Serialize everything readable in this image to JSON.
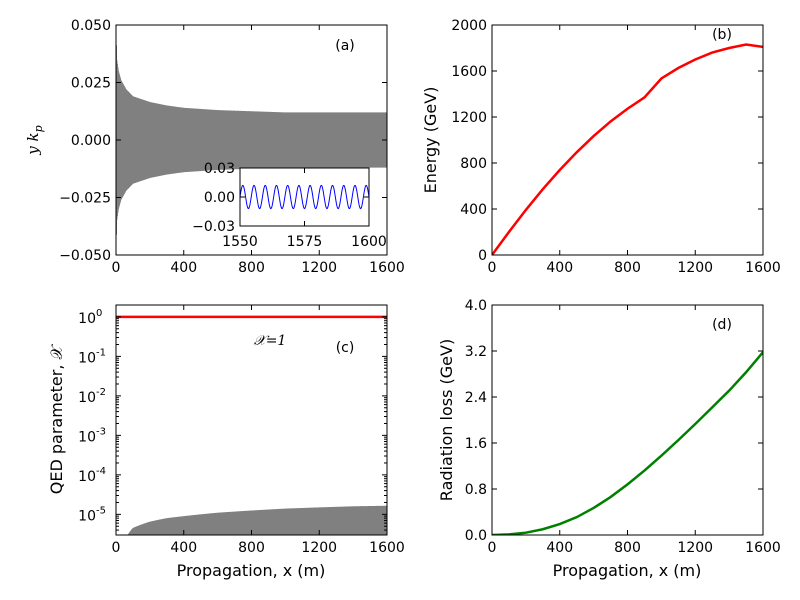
{
  "chart_data": [
    {
      "panel": "a",
      "type": "line",
      "label": "(a)",
      "ylabel": "y k_p",
      "xlim": [
        0,
        1600
      ],
      "ylim": [
        -0.05,
        0.05
      ],
      "xticks": [
        "0",
        "400",
        "800",
        "1200",
        "1600"
      ],
      "yticks": [
        "0.050",
        "0.025",
        "0.000",
        "−0.025",
        "−0.050"
      ],
      "series": [
        {
          "color": "#808080",
          "style": "filled oscillation envelope",
          "envelope_x": [
            0,
            5,
            15,
            30,
            60,
            100,
            200,
            300,
            400,
            600,
            800,
            1000,
            1200,
            1400,
            1600
          ],
          "envelope_y": [
            0.05,
            0.035,
            0.03,
            0.026,
            0.022,
            0.019,
            0.0165,
            0.015,
            0.014,
            0.013,
            0.0125,
            0.012,
            0.012,
            0.012,
            0.012
          ]
        }
      ],
      "inset": {
        "xlim": [
          1550,
          1600
        ],
        "ylim": [
          -0.03,
          0.03
        ],
        "xticks": [
          "1550",
          "1575",
          "1600"
        ],
        "yticks": [
          "0.03",
          "0.00",
          "−0.03"
        ],
        "series": [
          {
            "color": "#0000ff",
            "amplitude": 0.012,
            "cycles": 11.5
          }
        ]
      }
    },
    {
      "panel": "b",
      "type": "line",
      "label": "(b)",
      "ylabel": "Energy (GeV)",
      "xlim": [
        0,
        1600
      ],
      "ylim": [
        0,
        2000
      ],
      "xticks": [
        "0",
        "400",
        "800",
        "1200",
        "1600"
      ],
      "yticks": [
        "2000",
        "1600",
        "1200",
        "800",
        "400",
        "0"
      ],
      "series": [
        {
          "color": "#ff0000",
          "x": [
            0,
            100,
            200,
            300,
            400,
            500,
            600,
            700,
            800,
            900,
            1000,
            1100,
            1200,
            1300,
            1400,
            1500,
            1600
          ],
          "y": [
            0,
            200,
            392,
            572,
            739,
            893,
            1034,
            1161,
            1272,
            1370,
            1535,
            1626,
            1700,
            1760,
            1800,
            1830,
            1810
          ]
        }
      ]
    },
    {
      "panel": "c",
      "type": "line",
      "label": "(c)",
      "annotation": "𝒳=1",
      "ylabel": "QED parameter, 𝒳",
      "xlabel": "Propagation, x (m)",
      "yscale": "log",
      "xlim": [
        0,
        1600
      ],
      "ylim": [
        3e-06,
        2
      ],
      "xticks": [
        "0",
        "400",
        "800",
        "1200",
        "1600"
      ],
      "yticks": [
        {
          "base": "10",
          "exp": "0"
        },
        {
          "base": "10",
          "exp": "-1"
        },
        {
          "base": "10",
          "exp": "-2"
        },
        {
          "base": "10",
          "exp": "-3"
        },
        {
          "base": "10",
          "exp": "-4"
        },
        {
          "base": "10",
          "exp": "-5"
        }
      ],
      "series": [
        {
          "color": "#ff0000",
          "x": [
            0,
            1600
          ],
          "y": [
            1,
            1
          ]
        },
        {
          "color": "#808080",
          "style": "filled oscillation envelope",
          "envelope_x": [
            70,
            100,
            150,
            200,
            300,
            400,
            600,
            800,
            1000,
            1200,
            1400,
            1600
          ],
          "envelope_y": [
            3e-06,
            4.5e-06,
            5.5e-06,
            6.5e-06,
            8e-06,
            9e-06,
            1.1e-05,
            1.25e-05,
            1.4e-05,
            1.5e-05,
            1.6e-05,
            1.65e-05
          ]
        }
      ]
    },
    {
      "panel": "d",
      "type": "line",
      "label": "(d)",
      "ylabel": "Radiation loss (GeV)",
      "xlabel": "Propagation, x (m)",
      "xlim": [
        0,
        1600
      ],
      "ylim": [
        0,
        4.0
      ],
      "xticks": [
        "0",
        "400",
        "800",
        "1200",
        "1600"
      ],
      "yticks": [
        "4.0",
        "3.2",
        "2.4",
        "1.6",
        "0.8",
        "0.0"
      ],
      "series": [
        {
          "color": "#008000",
          "x": [
            0,
            100,
            200,
            300,
            400,
            500,
            600,
            700,
            800,
            900,
            1000,
            1100,
            1200,
            1300,
            1400,
            1500,
            1600
          ],
          "y": [
            0,
            0.01,
            0.04,
            0.1,
            0.19,
            0.31,
            0.47,
            0.66,
            0.88,
            1.12,
            1.38,
            1.65,
            1.93,
            2.22,
            2.51,
            2.83,
            3.18
          ]
        }
      ]
    }
  ]
}
